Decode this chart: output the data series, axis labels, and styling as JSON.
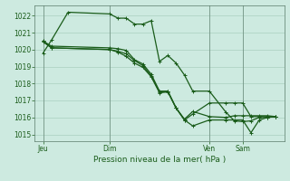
{
  "bg_color": "#cdeae0",
  "grid_color": "#aacfbf",
  "line_color": "#1a5c1a",
  "title": "Pression niveau de la mer( hPa )",
  "ylim": [
    1014.6,
    1022.6
  ],
  "yticks": [
    1015,
    1016,
    1017,
    1018,
    1019,
    1020,
    1021,
    1022
  ],
  "xtick_labels": [
    "Jeu",
    "Dim",
    "Ven",
    "Sam"
  ],
  "xtick_pos": [
    0,
    8,
    20,
    24
  ],
  "vline_pos": [
    0,
    8,
    20,
    24
  ],
  "xlim": [
    -1,
    29
  ],
  "lines": [
    {
      "x": [
        0,
        1,
        3,
        8,
        9,
        10,
        11,
        12,
        13,
        14,
        15,
        16,
        17,
        18,
        20,
        22,
        23,
        24,
        25,
        26,
        27,
        28
      ],
      "y": [
        1019.8,
        1020.55,
        1022.2,
        1022.1,
        1021.85,
        1021.85,
        1021.5,
        1021.5,
        1021.7,
        1019.3,
        1019.65,
        1019.2,
        1018.5,
        1017.55,
        1017.55,
        1016.3,
        1015.8,
        1015.75,
        1015.8,
        1016.0,
        1016.0,
        1016.05
      ]
    },
    {
      "x": [
        0,
        1,
        8,
        9,
        10,
        11,
        12,
        13,
        14,
        15,
        16,
        17,
        18,
        20,
        22,
        23,
        24,
        25,
        26,
        27,
        28
      ],
      "y": [
        1020.5,
        1020.2,
        1020.1,
        1020.05,
        1019.95,
        1019.4,
        1019.15,
        1018.55,
        1017.55,
        1017.55,
        1016.55,
        1015.9,
        1016.35,
        1016.05,
        1016.0,
        1016.1,
        1016.1,
        1016.1,
        1016.1,
        1016.1,
        1016.05
      ]
    },
    {
      "x": [
        0,
        1,
        8,
        9,
        10,
        11,
        12,
        13,
        14,
        15,
        16,
        17,
        18,
        20,
        22,
        23,
        24,
        25,
        26,
        27,
        28
      ],
      "y": [
        1020.5,
        1020.1,
        1020.0,
        1019.9,
        1019.75,
        1019.35,
        1019.05,
        1018.45,
        1017.5,
        1017.55,
        1016.55,
        1015.85,
        1016.2,
        1016.85,
        1016.85,
        1016.85,
        1016.85,
        1016.05,
        1016.05,
        1016.05,
        1016.05
      ]
    },
    {
      "x": [
        0,
        1,
        8,
        9,
        10,
        11,
        12,
        13,
        14,
        15,
        16,
        17,
        18,
        20,
        22,
        23,
        24,
        25,
        26,
        27,
        28
      ],
      "y": [
        1020.45,
        1020.1,
        1020.0,
        1019.85,
        1019.6,
        1019.2,
        1018.95,
        1018.4,
        1017.45,
        1017.5,
        1016.55,
        1015.85,
        1015.5,
        1015.85,
        1015.85,
        1015.85,
        1015.85,
        1015.1,
        1015.85,
        1016.0,
        1016.05
      ]
    }
  ],
  "marker": "+",
  "markersize": 3,
  "linewidth": 0.9
}
